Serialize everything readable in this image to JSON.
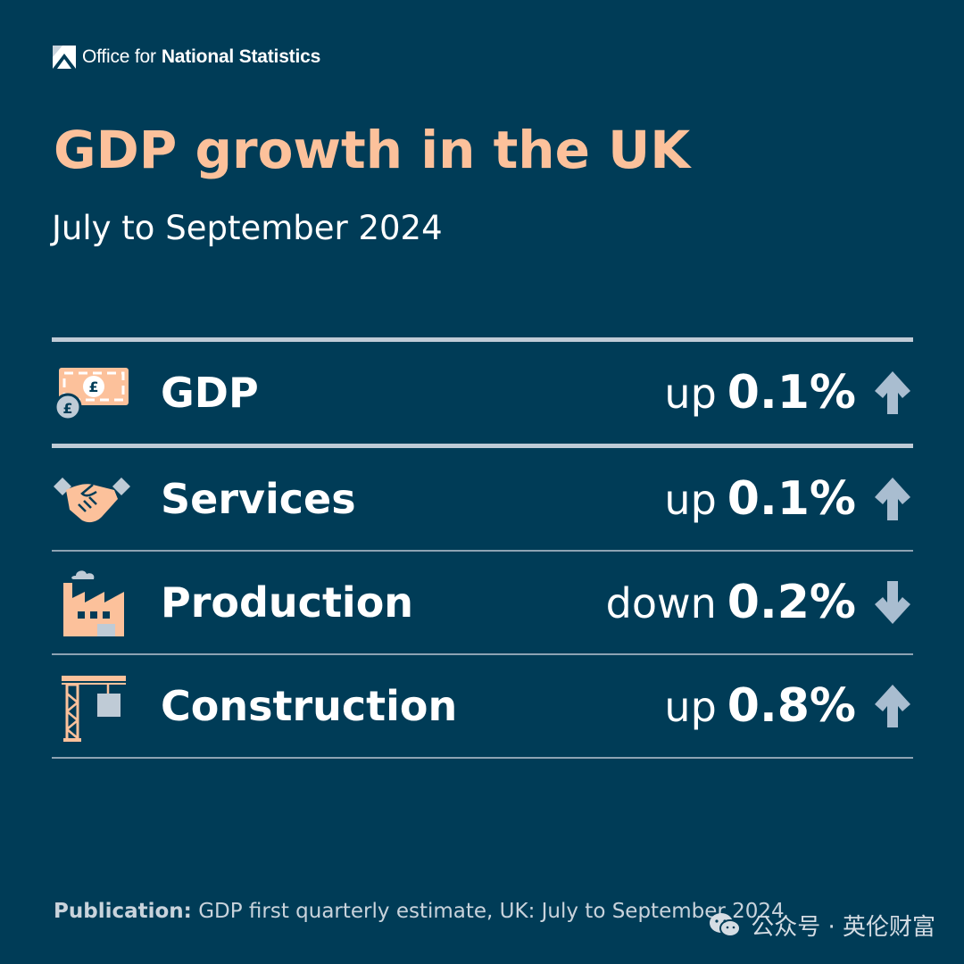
{
  "logo": {
    "prefix": "Office for",
    "name": "National Statistics"
  },
  "title": "GDP growth in the UK",
  "subtitle": "July to September 2024",
  "rows": [
    {
      "label": "GDP",
      "direction": "up",
      "value": "0.1%",
      "icon": "banknote-pound-icon"
    },
    {
      "label": "Services",
      "direction": "up",
      "value": "0.1%",
      "icon": "handshake-icon"
    },
    {
      "label": "Production",
      "direction": "down",
      "value": "0.2%",
      "icon": "factory-icon"
    },
    {
      "label": "Construction",
      "direction": "up",
      "value": "0.8%",
      "icon": "crane-icon"
    }
  ],
  "footer": {
    "label": "Publication:",
    "text": "GDP first quarterly estimate, UK: July to September 2024"
  },
  "watermark": "公众号 · 英伦财富",
  "colors": {
    "background": "#003c57",
    "accent": "#fcc19b",
    "arrow": "#a9bdd0"
  }
}
